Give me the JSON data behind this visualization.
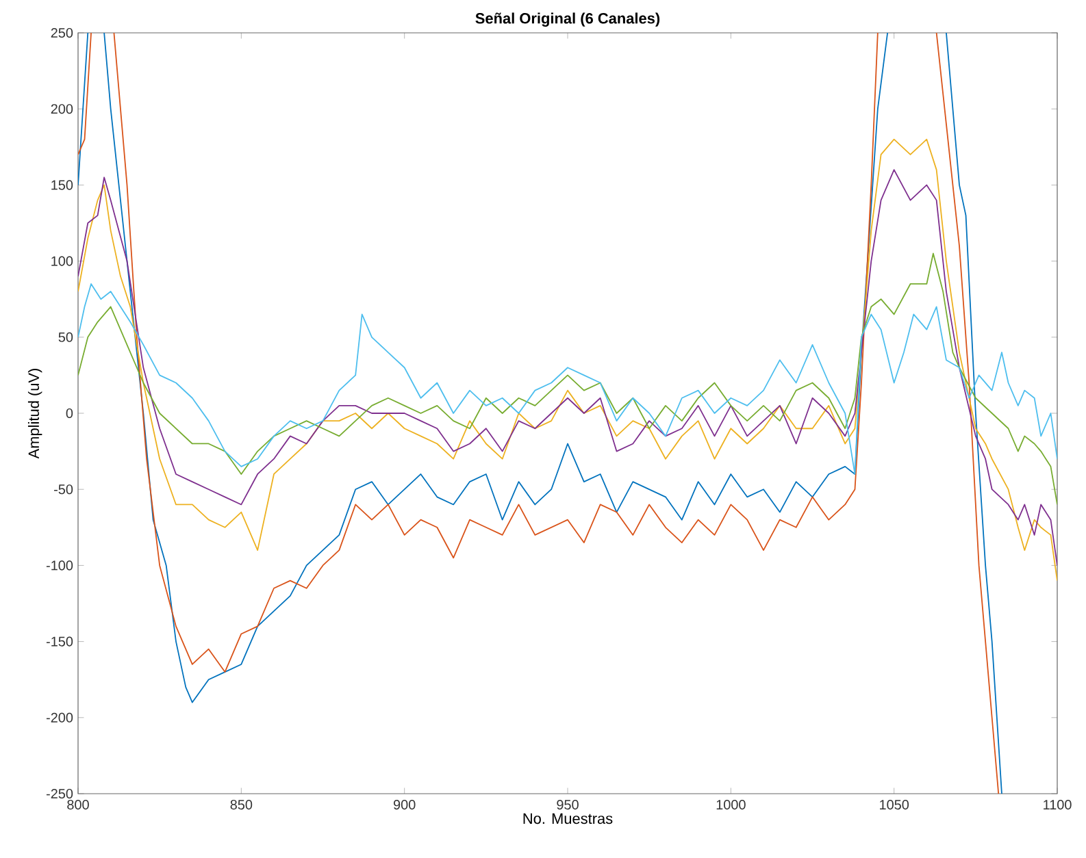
{
  "chart_data": {
    "type": "line",
    "title": "Señal Original (6 Canales)",
    "xlabel": "No. Muestras",
    "ylabel": "Amplitud (uV)",
    "xlim": [
      800,
      1100
    ],
    "ylim": [
      -250,
      250
    ],
    "xticks": [
      800,
      850,
      900,
      950,
      1000,
      1050,
      1100
    ],
    "yticks": [
      -250,
      -200,
      -150,
      -100,
      -50,
      0,
      50,
      100,
      150,
      200,
      250
    ],
    "series": [
      {
        "color": "#0072bd",
        "x": [
          800,
          803,
          805,
          808,
          810,
          815,
          820,
          823,
          827,
          830,
          833,
          835,
          840,
          845,
          850,
          855,
          860,
          865,
          870,
          875,
          880,
          885,
          890,
          895,
          900,
          905,
          910,
          915,
          920,
          925,
          930,
          935,
          940,
          945,
          950,
          955,
          960,
          965,
          970,
          975,
          980,
          985,
          990,
          995,
          1000,
          1005,
          1010,
          1015,
          1020,
          1025,
          1030,
          1035,
          1038,
          1040,
          1045,
          1048,
          1056,
          1066,
          1070,
          1072,
          1075,
          1078,
          1080,
          1083
        ],
        "values": [
          150,
          250,
          null,
          250,
          200,
          100,
          0,
          -70,
          -100,
          -150,
          -180,
          -190,
          -175,
          -170,
          -165,
          -140,
          -130,
          -120,
          -100,
          -90,
          -80,
          -50,
          -45,
          -60,
          -50,
          -40,
          -55,
          -60,
          -45,
          -40,
          -70,
          -45,
          -60,
          -50,
          -20,
          -45,
          -40,
          -65,
          -45,
          -50,
          -55,
          -70,
          -45,
          -60,
          -40,
          -55,
          -50,
          -65,
          -45,
          -55,
          -40,
          -35,
          -40,
          40,
          200,
          250,
          null,
          250,
          150,
          130,
          0,
          -100,
          -150,
          -250
        ]
      },
      {
        "color": "#d95319",
        "x": [
          800,
          802,
          804,
          808,
          811,
          815,
          818,
          821,
          825,
          830,
          835,
          840,
          845,
          850,
          855,
          860,
          865,
          870,
          875,
          880,
          885,
          890,
          895,
          900,
          905,
          910,
          915,
          920,
          925,
          930,
          935,
          940,
          945,
          950,
          955,
          960,
          965,
          970,
          975,
          980,
          985,
          990,
          995,
          1000,
          1005,
          1010,
          1015,
          1020,
          1025,
          1030,
          1035,
          1038,
          1040,
          1043,
          1045,
          1055,
          1063,
          1066,
          1070,
          1073,
          1076,
          1080,
          1082
        ],
        "values": [
          170,
          180,
          250,
          null,
          250,
          150,
          50,
          -30,
          -100,
          -140,
          -165,
          -155,
          -170,
          -145,
          -140,
          -115,
          -110,
          -115,
          -100,
          -90,
          -60,
          -70,
          -60,
          -80,
          -70,
          -75,
          -95,
          -70,
          -75,
          -80,
          -60,
          -80,
          -75,
          -70,
          -85,
          -60,
          -65,
          -80,
          -60,
          -75,
          -85,
          -70,
          -80,
          -60,
          -70,
          -90,
          -70,
          -75,
          -55,
          -70,
          -60,
          -50,
          20,
          150,
          250,
          null,
          250,
          190,
          110,
          20,
          -100,
          -200,
          -250
        ]
      },
      {
        "color": "#edb120",
        "x": [
          800,
          803,
          806,
          808,
          810,
          813,
          816,
          820,
          825,
          830,
          835,
          840,
          845,
          850,
          855,
          860,
          865,
          870,
          875,
          880,
          885,
          890,
          895,
          900,
          905,
          910,
          915,
          920,
          925,
          930,
          935,
          940,
          945,
          950,
          955,
          960,
          965,
          970,
          975,
          980,
          985,
          990,
          995,
          1000,
          1005,
          1010,
          1015,
          1020,
          1025,
          1030,
          1035,
          1038,
          1040,
          1043,
          1046,
          1050,
          1055,
          1060,
          1063,
          1066,
          1070,
          1075,
          1078,
          1080,
          1085,
          1088,
          1090,
          1093,
          1095,
          1098,
          1100
        ],
        "values": [
          80,
          115,
          140,
          150,
          120,
          90,
          70,
          20,
          -30,
          -60,
          -60,
          -70,
          -75,
          -65,
          -90,
          -40,
          -30,
          -20,
          -5,
          -5,
          0,
          -10,
          0,
          -10,
          -15,
          -20,
          -30,
          -5,
          -20,
          -30,
          0,
          -10,
          -5,
          15,
          0,
          5,
          -15,
          -5,
          -10,
          -30,
          -15,
          -5,
          -30,
          -10,
          -20,
          -10,
          5,
          -10,
          -10,
          5,
          -20,
          -10,
          40,
          120,
          170,
          180,
          170,
          180,
          160,
          100,
          40,
          -10,
          -20,
          -30,
          -50,
          -75,
          -90,
          -70,
          -75,
          -80,
          -110
        ]
      },
      {
        "color": "#7e2f8e",
        "x": [
          800,
          803,
          806,
          808,
          810,
          815,
          820,
          825,
          830,
          835,
          840,
          845,
          850,
          855,
          860,
          865,
          870,
          875,
          880,
          885,
          890,
          895,
          900,
          905,
          910,
          915,
          920,
          925,
          930,
          935,
          940,
          945,
          950,
          955,
          960,
          965,
          970,
          975,
          980,
          985,
          990,
          995,
          1000,
          1005,
          1010,
          1015,
          1020,
          1025,
          1030,
          1035,
          1038,
          1040,
          1043,
          1046,
          1050,
          1055,
          1060,
          1063,
          1066,
          1070,
          1075,
          1078,
          1080,
          1085,
          1088,
          1090,
          1093,
          1095,
          1098,
          1100
        ],
        "values": [
          90,
          125,
          130,
          155,
          140,
          100,
          30,
          -10,
          -40,
          -45,
          -50,
          -55,
          -60,
          -40,
          -30,
          -15,
          -20,
          -5,
          5,
          5,
          0,
          0,
          0,
          -5,
          -10,
          -25,
          -20,
          -10,
          -25,
          -5,
          -10,
          0,
          10,
          0,
          10,
          -25,
          -20,
          -5,
          -15,
          -10,
          5,
          -15,
          5,
          -15,
          -5,
          5,
          -20,
          10,
          0,
          -15,
          0,
          40,
          100,
          140,
          160,
          140,
          150,
          140,
          80,
          30,
          -15,
          -30,
          -50,
          -60,
          -70,
          -60,
          -80,
          -60,
          -70,
          -100
        ]
      },
      {
        "color": "#77ac30",
        "x": [
          800,
          803,
          806,
          810,
          815,
          820,
          825,
          830,
          835,
          840,
          845,
          850,
          855,
          860,
          865,
          870,
          875,
          880,
          885,
          890,
          895,
          900,
          905,
          910,
          915,
          920,
          925,
          930,
          935,
          940,
          945,
          950,
          955,
          960,
          965,
          970,
          975,
          980,
          985,
          990,
          995,
          1000,
          1005,
          1010,
          1015,
          1020,
          1025,
          1030,
          1035,
          1038,
          1040,
          1043,
          1046,
          1050,
          1055,
          1060,
          1062,
          1065,
          1068,
          1070,
          1075,
          1080,
          1085,
          1088,
          1090,
          1093,
          1095,
          1098,
          1100
        ],
        "values": [
          25,
          50,
          60,
          70,
          45,
          20,
          0,
          -10,
          -20,
          -20,
          -25,
          -40,
          -25,
          -15,
          -10,
          -5,
          -10,
          -15,
          -5,
          5,
          10,
          5,
          0,
          5,
          -5,
          -10,
          10,
          0,
          10,
          5,
          15,
          25,
          15,
          20,
          0,
          10,
          -10,
          5,
          -5,
          10,
          20,
          5,
          -5,
          5,
          -5,
          15,
          20,
          10,
          -10,
          10,
          50,
          70,
          75,
          65,
          85,
          85,
          105,
          80,
          40,
          30,
          10,
          0,
          -10,
          -25,
          -15,
          -20,
          -25,
          -35,
          -60
        ]
      },
      {
        "color": "#4dbeee",
        "x": [
          800,
          802,
          804,
          807,
          810,
          813,
          816,
          820,
          825,
          830,
          835,
          840,
          845,
          850,
          855,
          860,
          865,
          870,
          875,
          880,
          885,
          887,
          890,
          895,
          900,
          905,
          910,
          915,
          920,
          925,
          930,
          935,
          940,
          945,
          950,
          955,
          960,
          965,
          970,
          975,
          980,
          985,
          990,
          995,
          1000,
          1005,
          1010,
          1015,
          1020,
          1025,
          1030,
          1035,
          1038,
          1040,
          1043,
          1046,
          1050,
          1053,
          1056,
          1060,
          1063,
          1066,
          1070,
          1073,
          1076,
          1080,
          1083,
          1085,
          1088,
          1090,
          1093,
          1095,
          1098,
          1100
        ],
        "values": [
          50,
          70,
          85,
          75,
          80,
          70,
          60,
          45,
          25,
          20,
          10,
          -5,
          -25,
          -35,
          -30,
          -15,
          -5,
          -10,
          -5,
          15,
          25,
          65,
          50,
          40,
          30,
          10,
          20,
          0,
          15,
          5,
          10,
          0,
          15,
          20,
          30,
          25,
          20,
          -5,
          10,
          0,
          -15,
          10,
          15,
          0,
          10,
          5,
          15,
          35,
          20,
          45,
          20,
          0,
          -40,
          50,
          65,
          55,
          20,
          40,
          65,
          55,
          70,
          35,
          30,
          10,
          25,
          15,
          40,
          20,
          5,
          15,
          10,
          -15,
          0,
          -30
        ]
      }
    ]
  }
}
